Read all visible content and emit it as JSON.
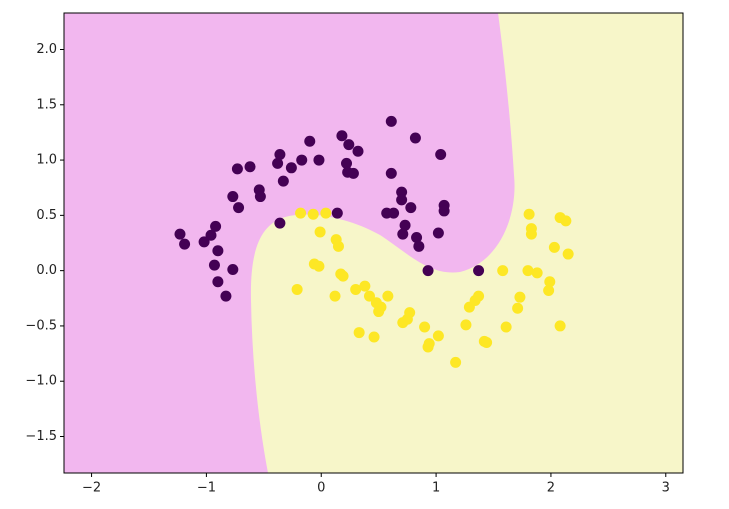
{
  "chart_data": {
    "type": "scatter",
    "xlim": [
      -2.24,
      3.15
    ],
    "ylim": [
      -1.83,
      2.33
    ],
    "xticks": [
      {
        "value": -2,
        "label": "−2"
      },
      {
        "value": -1,
        "label": "−1"
      },
      0,
      1,
      2,
      3
    ],
    "yticks": [
      {
        "value": -1.5,
        "label": "−1.5"
      },
      {
        "value": -1,
        "label": "−1.0"
      },
      {
        "value": -0.5,
        "label": "−0.5"
      },
      {
        "value": 0,
        "label": "0.0"
      },
      0.5,
      {
        "value": 1,
        "label": "1.0"
      },
      1.5,
      {
        "value": 2,
        "label": "2.0"
      }
    ],
    "series": [
      {
        "color": "#440154",
        "x": [
          -1.23,
          -1.19,
          -1.02,
          -0.96,
          -0.92,
          -0.9,
          -0.93,
          -0.9,
          -0.83,
          -0.77,
          -0.77,
          -0.72,
          -0.73,
          -0.62,
          -0.54,
          -0.53,
          -0.38,
          -0.36,
          -0.33,
          -0.26,
          -0.17,
          -0.1,
          -0.02,
          -0.36,
          0.14,
          0.18,
          0.24,
          0.22,
          0.23,
          0.28,
          0.32,
          0.61,
          0.82,
          1.04,
          0.61,
          0.7,
          0.7,
          0.57,
          0.63,
          0.78,
          0.73,
          0.71,
          0.83,
          0.85,
          1.02,
          1.07,
          1.07,
          0.93,
          1.37
        ],
        "values": [
          0.33,
          0.24,
          0.26,
          0.32,
          0.4,
          0.18,
          0.05,
          -0.1,
          -0.23,
          0.01,
          0.67,
          0.57,
          0.92,
          0.94,
          0.73,
          0.67,
          0.97,
          1.05,
          0.81,
          0.93,
          1.0,
          1.17,
          1.0,
          0.43,
          0.52,
          1.22,
          1.14,
          0.97,
          0.89,
          0.88,
          1.08,
          1.35,
          1.2,
          1.05,
          0.88,
          0.71,
          0.64,
          0.52,
          0.52,
          0.57,
          0.41,
          0.33,
          0.3,
          0.22,
          0.34,
          0.59,
          0.54,
          0.0,
          0.0
        ]
      },
      {
        "color": "#fde725",
        "x": [
          -0.18,
          -0.07,
          0.04,
          -0.01,
          0.13,
          0.15,
          -0.06,
          -0.02,
          0.17,
          0.19,
          -0.21,
          0.12,
          0.3,
          0.38,
          0.42,
          0.48,
          0.58,
          0.52,
          0.5,
          0.33,
          0.46,
          0.71,
          0.75,
          0.77,
          0.9,
          0.94,
          0.93,
          1.02,
          1.17,
          1.26,
          1.29,
          1.34,
          1.37,
          1.42,
          1.44,
          1.58,
          1.61,
          1.71,
          1.73,
          1.81,
          1.83,
          1.83,
          1.8,
          1.88,
          1.99,
          1.98,
          2.03,
          2.08,
          2.13,
          2.15,
          2.08
        ],
        "values": [
          0.52,
          0.51,
          0.52,
          0.35,
          0.28,
          0.22,
          0.06,
          0.04,
          -0.03,
          -0.05,
          -0.17,
          -0.23,
          -0.17,
          -0.14,
          -0.23,
          -0.29,
          -0.23,
          -0.33,
          -0.37,
          -0.56,
          -0.6,
          -0.47,
          -0.44,
          -0.38,
          -0.51,
          -0.66,
          -0.69,
          -0.59,
          -0.83,
          -0.49,
          -0.33,
          -0.27,
          -0.23,
          -0.64,
          -0.65,
          0.0,
          -0.51,
          -0.34,
          -0.24,
          0.51,
          0.33,
          0.38,
          0.0,
          -0.02,
          -0.1,
          -0.18,
          0.21,
          0.48,
          0.45,
          0.15,
          -0.5
        ]
      }
    ]
  }
}
